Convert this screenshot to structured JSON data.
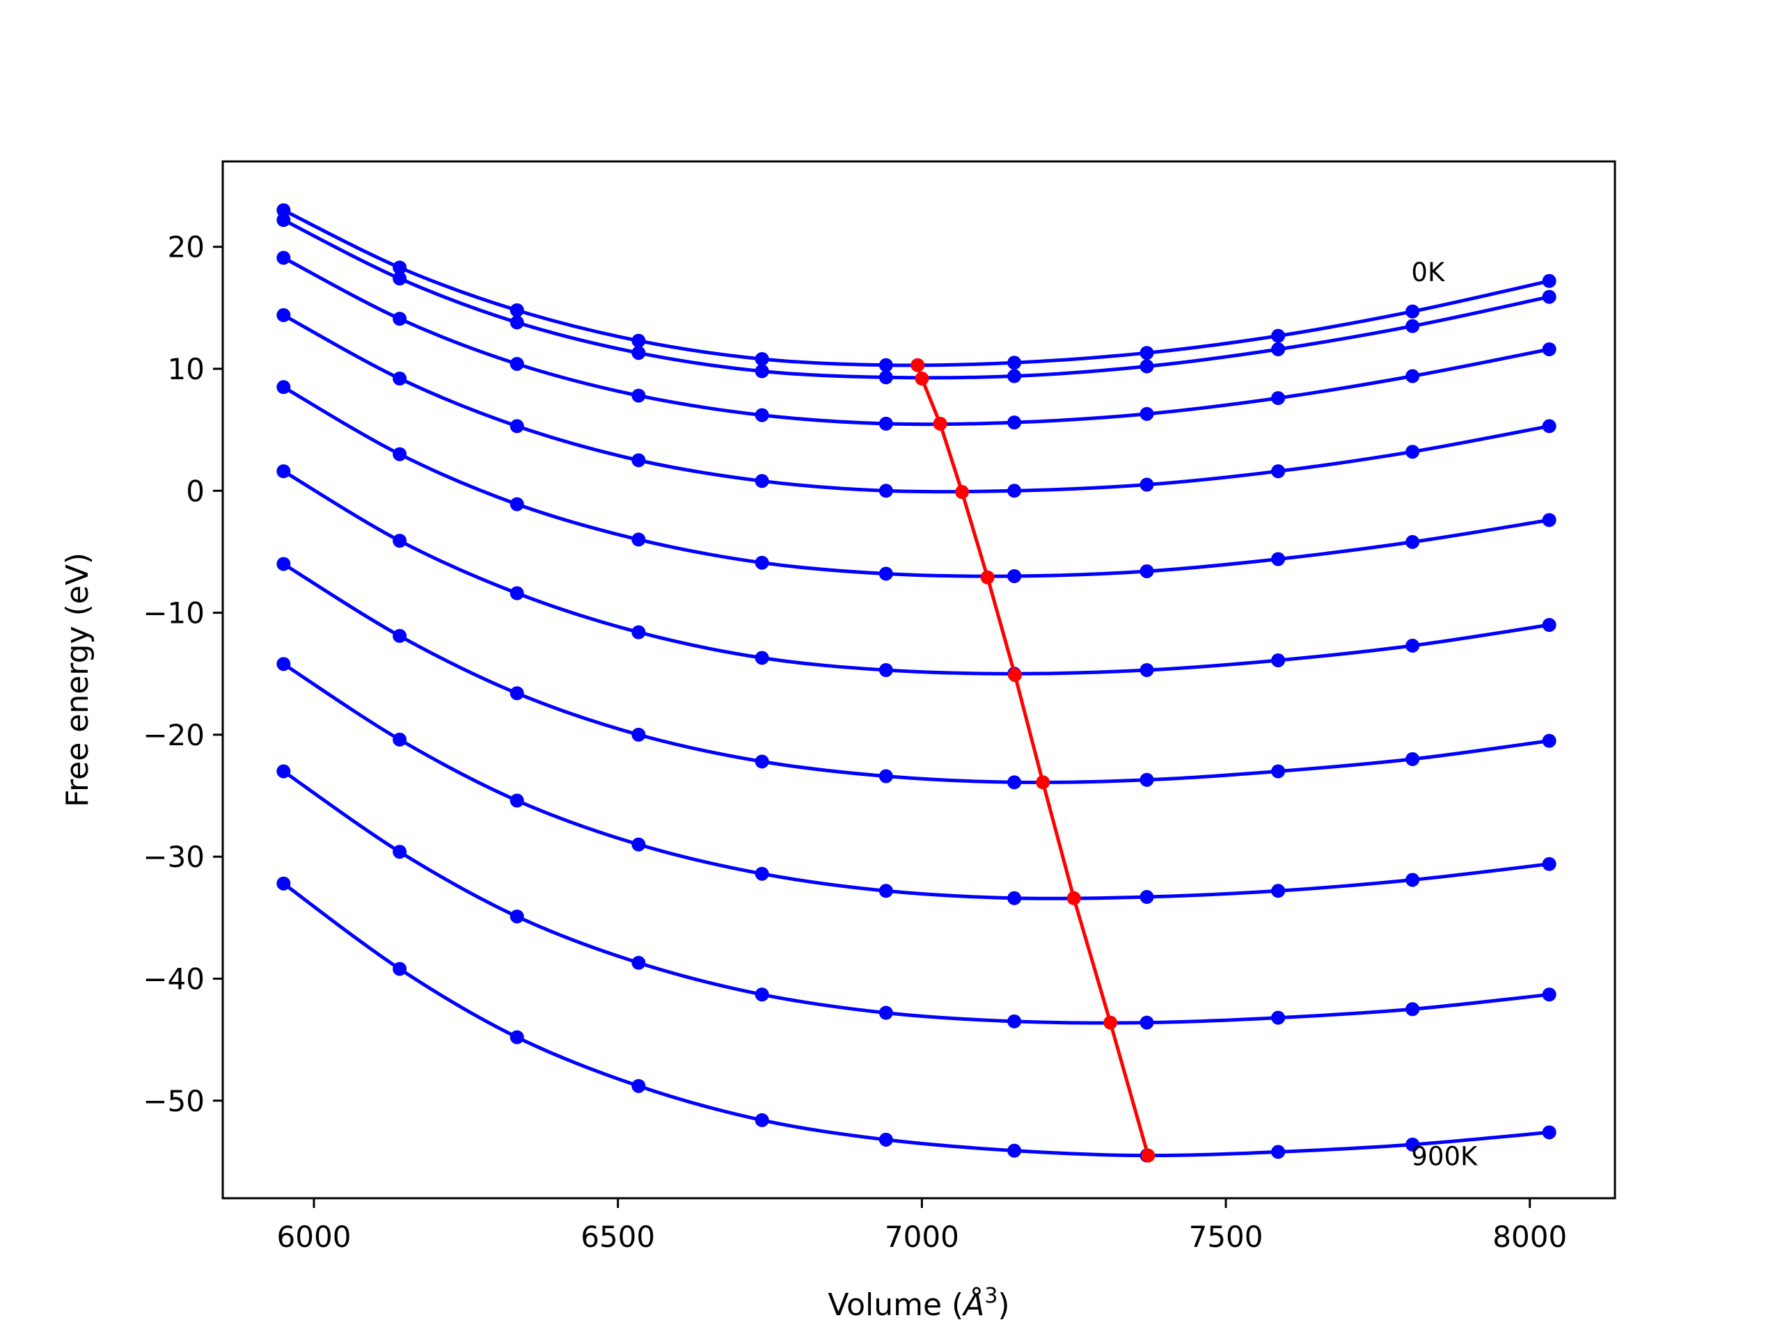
{
  "chart_data": {
    "type": "line",
    "xlabel": "Volume (",
    "xlabel_unit": "Å",
    "xlabel_sup": "3",
    "xlabel_close": ")",
    "ylabel": "Free energy (eV)",
    "xlim": [
      5850,
      8140
    ],
    "ylim": [
      -58,
      27
    ],
    "xticks": [
      6000,
      6500,
      7000,
      7500,
      8000
    ],
    "yticks": [
      20,
      10,
      0,
      -10,
      -20,
      -30,
      -40,
      -50
    ],
    "ytick_labels": [
      "20",
      "10",
      "0",
      "−10",
      "−20",
      "−30",
      "−40",
      "−50"
    ],
    "grid": false,
    "colors": {
      "isotherms": "#0000ff",
      "minima": "#ff0000"
    },
    "annotations": [
      {
        "text": "0K",
        "x": 7805,
        "y": 17.2
      },
      {
        "text": "900K",
        "x": 7805,
        "y": -55.3
      }
    ],
    "x": [
      5950,
      6141,
      6334,
      6534,
      6737,
      6941,
      7152,
      7370,
      7586,
      7807,
      8032
    ],
    "series": [
      {
        "values": [
          23.0,
          18.3,
          14.8,
          12.3,
          10.8,
          10.3,
          10.5,
          11.3,
          12.7,
          14.7,
          17.2
        ],
        "minimum": [
          6993,
          10.3
        ]
      },
      {
        "values": [
          22.2,
          17.4,
          13.8,
          11.3,
          9.8,
          9.3,
          9.4,
          10.2,
          11.6,
          13.5,
          15.9
        ],
        "minimum": [
          7000,
          9.2
        ]
      },
      {
        "values": [
          19.1,
          14.1,
          10.4,
          7.8,
          6.2,
          5.5,
          5.6,
          6.3,
          7.6,
          9.4,
          11.6
        ],
        "minimum": [
          7030,
          5.5
        ]
      },
      {
        "values": [
          14.4,
          9.2,
          5.3,
          2.5,
          0.8,
          0.0,
          0.0,
          0.5,
          1.6,
          3.2,
          5.3
        ],
        "minimum": [
          7066,
          -0.1
        ]
      },
      {
        "values": [
          8.5,
          3.0,
          -1.1,
          -4.0,
          -5.9,
          -6.8,
          -7.0,
          -6.6,
          -5.6,
          -4.2,
          -2.4
        ],
        "minimum": [
          7108,
          -7.1
        ]
      },
      {
        "values": [
          1.6,
          -4.1,
          -8.4,
          -11.6,
          -13.7,
          -14.7,
          -15.0,
          -14.7,
          -13.9,
          -12.7,
          -11.0
        ],
        "minimum": [
          7153,
          -15.1
        ]
      },
      {
        "values": [
          -6.0,
          -11.9,
          -16.6,
          -20.0,
          -22.2,
          -23.4,
          -23.9,
          -23.7,
          -23.0,
          -22.0,
          -20.5
        ],
        "minimum": [
          7199,
          -23.9
        ]
      },
      {
        "values": [
          -14.2,
          -20.4,
          -25.4,
          -29.0,
          -31.4,
          -32.8,
          -33.4,
          -33.3,
          -32.8,
          -31.9,
          -30.6
        ],
        "minimum": [
          7250,
          -33.4
        ]
      },
      {
        "values": [
          -23.0,
          -29.6,
          -34.9,
          -38.7,
          -41.3,
          -42.8,
          -43.5,
          -43.6,
          -43.2,
          -42.5,
          -41.3
        ],
        "minimum": [
          7310,
          -43.6
        ]
      },
      {
        "values": [
          -32.2,
          -39.2,
          -44.8,
          -48.8,
          -51.6,
          -53.2,
          -54.1,
          -54.5,
          -54.2,
          -53.6,
          -52.6
        ],
        "minimum": [
          7372,
          -54.5
        ]
      }
    ]
  }
}
